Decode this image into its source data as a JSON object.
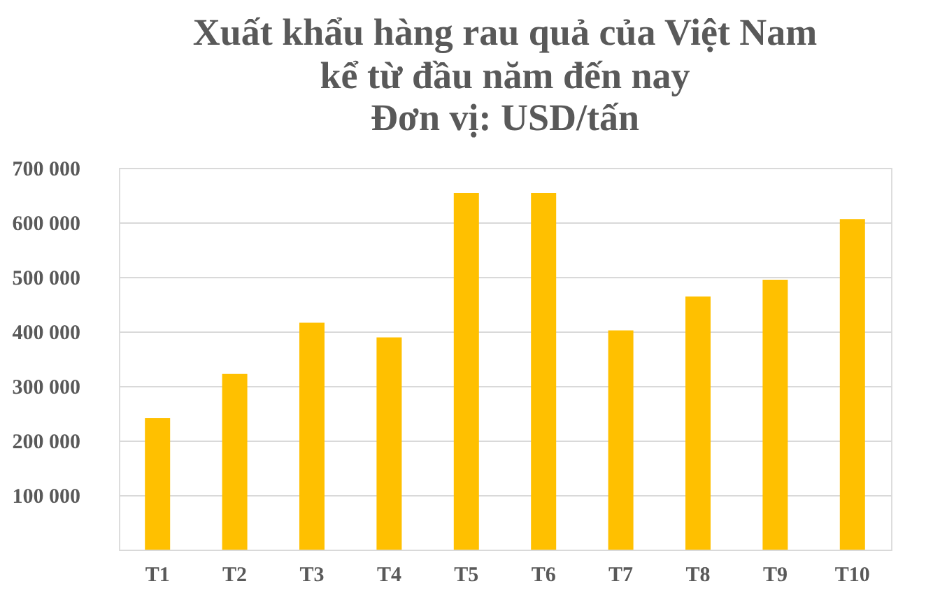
{
  "chart_data": {
    "type": "bar",
    "title": [
      "Xuất khẩu hàng rau quả của Việt Nam",
      "kể từ đầu năm đến nay"
    ],
    "subtitle": "Đơn vị: USD/tấn",
    "categories": [
      "T1",
      "T2",
      "T3",
      "T4",
      "T5",
      "T6",
      "T7",
      "T8",
      "T9",
      "T10"
    ],
    "values": [
      241000,
      322000,
      416000,
      389000,
      654000,
      654000,
      402000,
      464000,
      495000,
      606000
    ],
    "color": "#ffc000",
    "ylim": [
      0,
      700000
    ],
    "yticks": [
      {
        "value": 0,
        "label": null
      },
      {
        "value": 100000,
        "label": "100 000"
      },
      {
        "value": 200000,
        "label": "200 000"
      },
      {
        "value": 300000,
        "label": "300 000"
      },
      {
        "value": 400000,
        "label": "400 000"
      },
      {
        "value": 500000,
        "label": "500 000"
      },
      {
        "value": 600000,
        "label": "600 000"
      },
      {
        "value": 700000,
        "label": "700 000"
      }
    ],
    "grid": "y"
  }
}
